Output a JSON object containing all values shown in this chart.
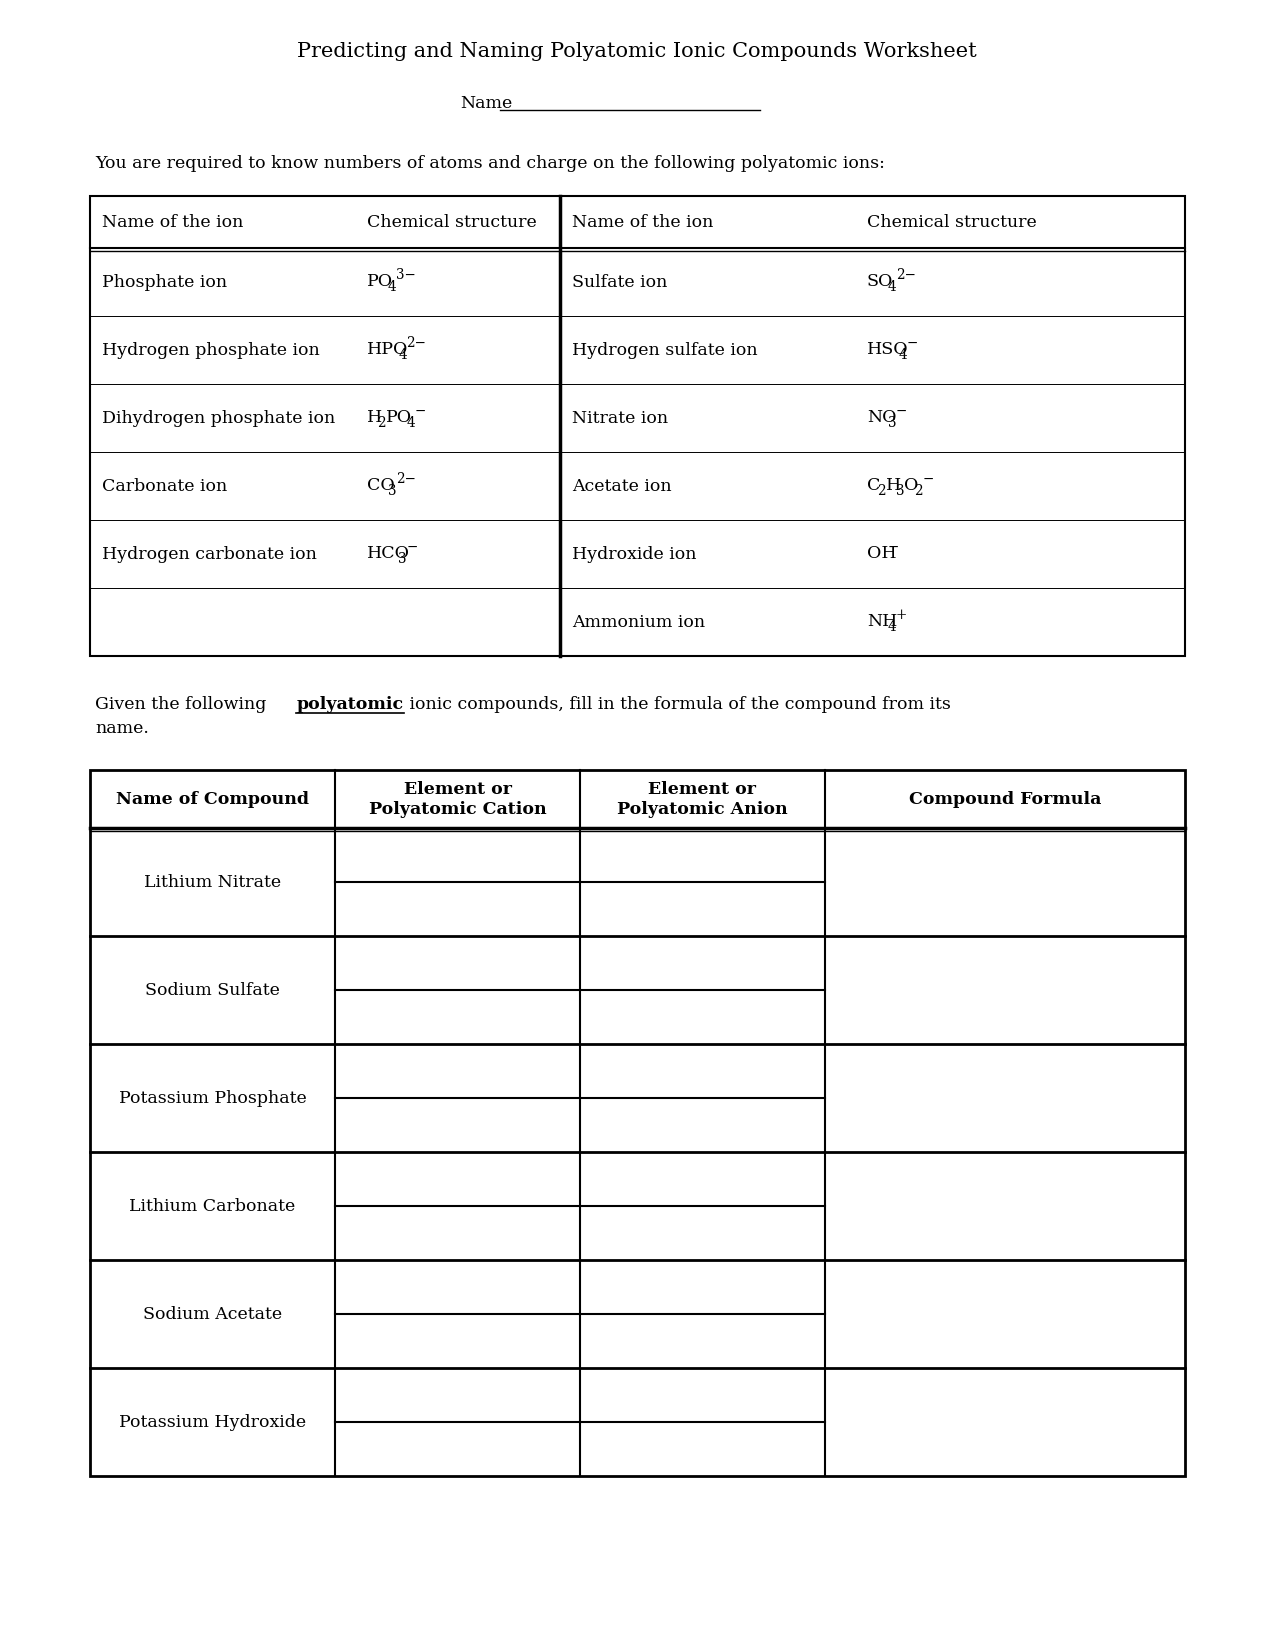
{
  "title": "Predicting and Naming Polyatomic Ionic Compounds Worksheet",
  "bg_color": "#ffffff",
  "intro_text": "You are required to know numbers of atoms and charge on the following polyatomic ions:",
  "table1_rows": [
    [
      "Phosphate ion",
      [
        [
          "PO",
          0
        ],
        [
          "4",
          1
        ],
        [
          "¯3−",
          2
        ]
      ],
      "Sulfate ion",
      [
        [
          "SO",
          0
        ],
        [
          "4",
          1
        ],
        [
          "¯2−",
          2
        ]
      ]
    ],
    [
      "Hydrogen phosphate ion",
      [
        [
          "HPO",
          0
        ],
        [
          "4",
          1
        ],
        [
          "¯2−",
          2
        ]
      ],
      "Hydrogen sulfate ion",
      [
        [
          "HSO",
          0
        ],
        [
          "4",
          1
        ],
        [
          "¯−",
          2
        ]
      ]
    ],
    [
      "Dihydrogen phosphate ion",
      [
        [
          "H",
          0
        ],
        [
          "2",
          1
        ],
        [
          "PO",
          0
        ],
        [
          "4",
          1
        ],
        [
          "¯−",
          2
        ]
      ],
      "Nitrate ion",
      [
        [
          "NO",
          0
        ],
        [
          "3",
          1
        ],
        [
          "¯−",
          2
        ]
      ]
    ],
    [
      "Carbonate ion",
      [
        [
          "CO",
          0
        ],
        [
          "3",
          1
        ],
        [
          "¯2−",
          2
        ]
      ],
      "Acetate ion",
      [
        [
          "C",
          0
        ],
        [
          "2",
          1
        ],
        [
          "H",
          0
        ],
        [
          "3",
          1
        ],
        [
          "O",
          0
        ],
        [
          "2",
          1
        ],
        [
          "¯−",
          2
        ]
      ]
    ],
    [
      "Hydrogen carbonate ion",
      [
        [
          "HCO",
          0
        ],
        [
          "3",
          1
        ],
        [
          "¯−",
          2
        ]
      ],
      "Hydroxide ion",
      [
        [
          "OH",
          0
        ],
        [
          "¯−",
          2
        ]
      ]
    ],
    [
      "",
      [],
      "Ammonium ion",
      [
        [
          "NH",
          0
        ],
        [
          "4",
          1
        ],
        [
          "⁺",
          2
        ]
      ]
    ]
  ],
  "table2_rows": [
    "Lithium Nitrate",
    "Sodium Sulfate",
    "Potassium Phosphate",
    "Lithium Carbonate",
    "Sodium Acetate",
    "Potassium Hydroxide"
  ],
  "gray_color": "#aaaaaa"
}
